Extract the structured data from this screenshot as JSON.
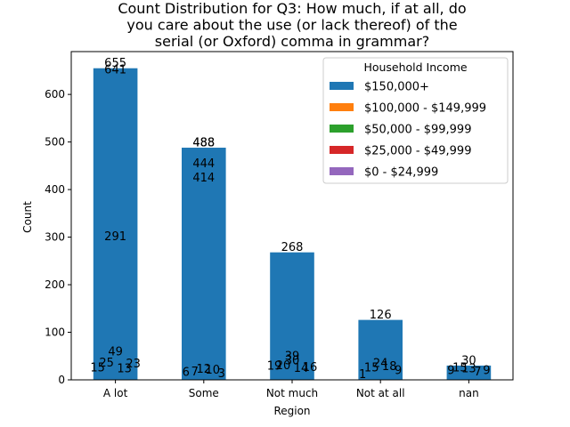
{
  "chart_data": {
    "type": "bar",
    "title_lines": [
      "Count Distribution for Q3: How much, if at all, do",
      "you care about the use (or lack thereof) of the",
      "serial (or Oxford) comma in grammar?"
    ],
    "xlabel": "Region",
    "ylabel": "Count",
    "ylim": [
      0,
      690
    ],
    "yticks": [
      0,
      100,
      200,
      300,
      400,
      500,
      600
    ],
    "categories": [
      "A lot",
      "Some",
      "Not much",
      "Not at all",
      "nan"
    ],
    "bar_values": [
      655,
      488,
      268,
      126,
      30
    ],
    "legend": {
      "title": "Household Income",
      "position": "upper-right",
      "entries": [
        {
          "label": "$150,000+",
          "color": "#1f77b4"
        },
        {
          "label": "$100,000 - $149,999",
          "color": "#ff7f0e"
        },
        {
          "label": "$50,000 - $99,999",
          "color": "#2ca02c"
        },
        {
          "label": "$25,000 - $49,999",
          "color": "#d62728"
        },
        {
          "label": "$0 - $24,999",
          "color": "#9467bd"
        }
      ]
    },
    "data_labels": [
      {
        "category": "A lot",
        "text": "655",
        "y": 655,
        "dx": 0
      },
      {
        "category": "A lot",
        "text": "641",
        "y": 641,
        "dx": 0
      },
      {
        "category": "A lot",
        "text": "291",
        "y": 291,
        "dx": 0
      },
      {
        "category": "A lot",
        "text": "49",
        "y": 49,
        "dx": 0
      },
      {
        "category": "A lot",
        "text": "25",
        "y": 25,
        "dx": -10
      },
      {
        "category": "A lot",
        "text": "23",
        "y": 23,
        "dx": 20
      },
      {
        "category": "A lot",
        "text": "15",
        "y": 15,
        "dx": -20
      },
      {
        "category": "A lot",
        "text": "13",
        "y": 13,
        "dx": 10
      },
      {
        "category": "Some",
        "text": "488",
        "y": 488,
        "dx": 0
      },
      {
        "category": "Some",
        "text": "488",
        "y": 488,
        "dx": 0
      },
      {
        "category": "Some",
        "text": "444",
        "y": 444,
        "dx": 0
      },
      {
        "category": "Some",
        "text": "414",
        "y": 414,
        "dx": 0
      },
      {
        "category": "Some",
        "text": "12",
        "y": 12,
        "dx": 0
      },
      {
        "category": "Some",
        "text": "10",
        "y": 10,
        "dx": 10
      },
      {
        "category": "Some",
        "text": "7",
        "y": 7,
        "dx": -10
      },
      {
        "category": "Some",
        "text": "6",
        "y": 6,
        "dx": -20
      },
      {
        "category": "Some",
        "text": "3",
        "y": 3,
        "dx": 20
      },
      {
        "category": "Not much",
        "text": "268",
        "y": 268,
        "dx": 0
      },
      {
        "category": "Not much",
        "text": "39",
        "y": 39,
        "dx": 0
      },
      {
        "category": "Not much",
        "text": "30",
        "y": 30,
        "dx": 0
      },
      {
        "category": "Not much",
        "text": "20",
        "y": 20,
        "dx": -10
      },
      {
        "category": "Not much",
        "text": "19",
        "y": 19,
        "dx": -20
      },
      {
        "category": "Not much",
        "text": "16",
        "y": 16,
        "dx": 20
      },
      {
        "category": "Not much",
        "text": "14",
        "y": 14,
        "dx": 10
      },
      {
        "category": "Not at all",
        "text": "126",
        "y": 126,
        "dx": 0
      },
      {
        "category": "Not at all",
        "text": "24",
        "y": 24,
        "dx": 0
      },
      {
        "category": "Not at all",
        "text": "18",
        "y": 18,
        "dx": 10
      },
      {
        "category": "Not at all",
        "text": "15",
        "y": 15,
        "dx": -10
      },
      {
        "category": "Not at all",
        "text": "9",
        "y": 9,
        "dx": 20
      },
      {
        "category": "Not at all",
        "text": "1",
        "y": 1,
        "dx": -20
      },
      {
        "category": "nan",
        "text": "30",
        "y": 30,
        "dx": 0
      },
      {
        "category": "nan",
        "text": "15",
        "y": 15,
        "dx": -10
      },
      {
        "category": "nan",
        "text": "13",
        "y": 13,
        "dx": 0
      },
      {
        "category": "nan",
        "text": "9",
        "y": 9,
        "dx": -20
      },
      {
        "category": "nan",
        "text": "9",
        "y": 9,
        "dx": 20
      },
      {
        "category": "nan",
        "text": "7",
        "y": 7,
        "dx": 10
      }
    ]
  }
}
